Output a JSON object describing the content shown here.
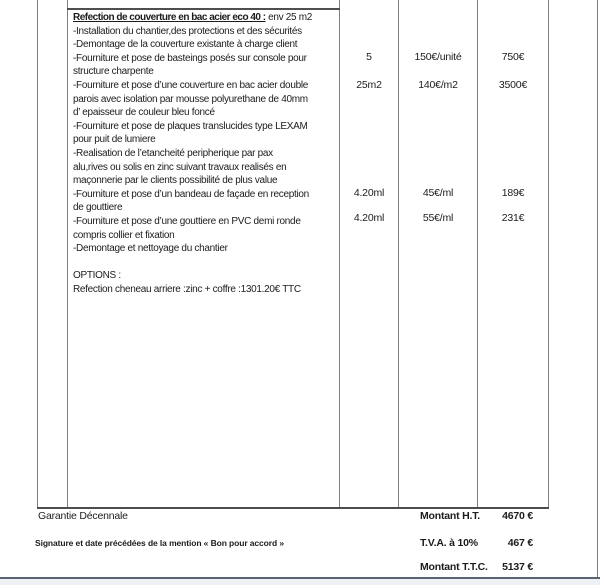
{
  "work_item": {
    "title_bold": "Refection de couverture en bac acier eco  40 :",
    "title_rest": " env 25 m2",
    "description_lines": [
      "-Installation du chantier,des protections et des sécurités",
      "-Demontage de la couverture existante  à charge client",
      "-Fourniture et pose de basteings posés sur console pour",
      "structure charpente",
      "-Fourniture et pose d’une couverture en bac acier double",
      "parois avec isolation par mousse polyurethane de 40mm",
      "d’ epaisseur de couleur bleu foncé",
      "-Fourniture et pose de plaques translucides type LEXAM",
      "pour puit de lumiere",
      "-Realisation de l’etancheité peripherique par pax",
      "alu,rives ou solis en zinc suivant travaux realisés en",
      "maçonnerie par le clients possibilité de plus value",
      "-Fourniture et pose d’un bandeau de façade en reception",
      "de gouttiere",
      "-Fourniture et pose d’une gouttiere en PVC demi ronde",
      "compris collier et fixation",
      "-Demontage et nettoyage du chantier",
      "",
      "OPTIONS :",
      "Refection cheneau arriere :zinc + coffre :1301.20€ TTC"
    ]
  },
  "line_items": [
    {
      "quantity": "5",
      "unit_price": "150€/unité",
      "total": "750€"
    },
    {
      "quantity": "25m2",
      "unit_price": "140€/m2",
      "total": "3500€"
    },
    {
      "quantity": "4.20ml",
      "unit_price": "45€/ml",
      "total": "189€"
    },
    {
      "quantity": "4.20ml",
      "unit_price": "55€/ml",
      "total": "231€"
    }
  ],
  "footer": {
    "garantie": "Garantie Décennale",
    "signature_note": "Signature et date précédées de la mention « Bon pour accord »",
    "totals": [
      {
        "label": "Montant H.T.",
        "value": "4670 €"
      },
      {
        "label": "T.V.A. à 10%",
        "value": "467 €"
      },
      {
        "label": "Montant T.T.C.",
        "value": "5137 €"
      }
    ]
  },
  "colors": {
    "border_gray": "#7f7f7f",
    "dark_rule": "#4d4d4d",
    "window_edge": "#5a6472",
    "text": "#1c1c1c"
  }
}
